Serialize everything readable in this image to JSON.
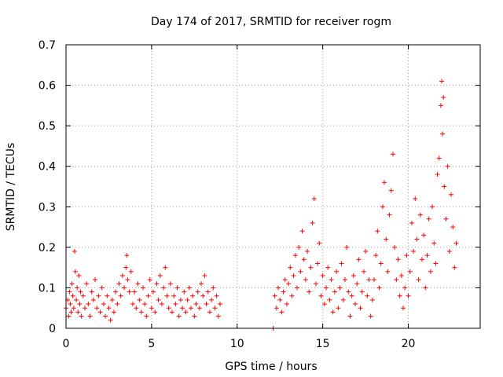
{
  "chart_data": {
    "type": "scatter",
    "title": "Day 174 of 2017, SRMTID for receiver rogm",
    "xlabel": "GPS time / hours",
    "ylabel": "SRMTID / TECUs",
    "xlim": [
      0,
      24.2
    ],
    "ylim": [
      0,
      0.7
    ],
    "x_ticks": [
      0,
      5,
      10,
      15,
      20
    ],
    "x_tick_labels": [
      "0",
      "5",
      "10",
      "15",
      "20"
    ],
    "y_ticks": [
      0,
      0.1,
      0.2,
      0.3,
      0.4,
      0.5,
      0.6,
      0.7
    ],
    "y_tick_labels": [
      "0",
      "0.1",
      "0.2",
      "0.3",
      "0.4",
      "0.5",
      "0.6",
      "0.7"
    ],
    "grid": true,
    "marker": "plus",
    "colors": {
      "points": "#ff0000",
      "grid": "#a0a0a0",
      "axes": "#000000"
    },
    "series": [
      {
        "points": [
          [
            0.0,
            0.05
          ],
          [
            0.1,
            0.07
          ],
          [
            0.15,
            0.03
          ],
          [
            0.2,
            0.09
          ],
          [
            0.25,
            0.06
          ],
          [
            0.3,
            0.04
          ],
          [
            0.35,
            0.11
          ],
          [
            0.4,
            0.08
          ],
          [
            0.45,
            0.05
          ],
          [
            0.5,
            0.19
          ],
          [
            0.55,
            0.14
          ],
          [
            0.6,
            0.07
          ],
          [
            0.65,
            0.1
          ],
          [
            0.7,
            0.04
          ],
          [
            0.75,
            0.13
          ],
          [
            0.8,
            0.06
          ],
          [
            0.85,
            0.09
          ],
          [
            0.9,
            0.03
          ],
          [
            1.0,
            0.08
          ],
          [
            1.1,
            0.05
          ],
          [
            1.2,
            0.11
          ],
          [
            1.3,
            0.06
          ],
          [
            1.4,
            0.03
          ],
          [
            1.5,
            0.09
          ],
          [
            1.6,
            0.07
          ],
          [
            1.7,
            0.12
          ],
          [
            1.8,
            0.05
          ],
          [
            1.9,
            0.08
          ],
          [
            2.0,
            0.04
          ],
          [
            2.1,
            0.1
          ],
          [
            2.2,
            0.06
          ],
          [
            2.3,
            0.03
          ],
          [
            2.4,
            0.08
          ],
          [
            2.5,
            0.05
          ],
          [
            2.6,
            0.02
          ],
          [
            2.7,
            0.07
          ],
          [
            2.8,
            0.04
          ],
          [
            2.9,
            0.09
          ],
          [
            3.0,
            0.06
          ],
          [
            3.1,
            0.11
          ],
          [
            3.2,
            0.08
          ],
          [
            3.3,
            0.13
          ],
          [
            3.4,
            0.1
          ],
          [
            3.5,
            0.15
          ],
          [
            3.55,
            0.18
          ],
          [
            3.6,
            0.12
          ],
          [
            3.7,
            0.09
          ],
          [
            3.8,
            0.14
          ],
          [
            3.9,
            0.06
          ],
          [
            4.0,
            0.09
          ],
          [
            4.1,
            0.05
          ],
          [
            4.2,
            0.11
          ],
          [
            4.3,
            0.07
          ],
          [
            4.4,
            0.04
          ],
          [
            4.5,
            0.1
          ],
          [
            4.6,
            0.06
          ],
          [
            4.7,
            0.03
          ],
          [
            4.8,
            0.08
          ],
          [
            4.9,
            0.12
          ],
          [
            5.0,
            0.05
          ],
          [
            5.1,
            0.09
          ],
          [
            5.2,
            0.04
          ],
          [
            5.3,
            0.11
          ],
          [
            5.4,
            0.07
          ],
          [
            5.5,
            0.13
          ],
          [
            5.6,
            0.06
          ],
          [
            5.7,
            0.1
          ],
          [
            5.8,
            0.15
          ],
          [
            5.9,
            0.08
          ],
          [
            6.0,
            0.05
          ],
          [
            6.1,
            0.11
          ],
          [
            6.2,
            0.04
          ],
          [
            6.3,
            0.08
          ],
          [
            6.4,
            0.06
          ],
          [
            6.5,
            0.1
          ],
          [
            6.6,
            0.03
          ],
          [
            6.7,
            0.07
          ],
          [
            6.8,
            0.05
          ],
          [
            6.9,
            0.09
          ],
          [
            7.0,
            0.04
          ],
          [
            7.1,
            0.07
          ],
          [
            7.2,
            0.1
          ],
          [
            7.3,
            0.05
          ],
          [
            7.4,
            0.08
          ],
          [
            7.5,
            0.03
          ],
          [
            7.6,
            0.06
          ],
          [
            7.7,
            0.09
          ],
          [
            7.8,
            0.05
          ],
          [
            7.9,
            0.11
          ],
          [
            8.0,
            0.08
          ],
          [
            8.1,
            0.13
          ],
          [
            8.2,
            0.06
          ],
          [
            8.3,
            0.09
          ],
          [
            8.4,
            0.04
          ],
          [
            8.5,
            0.07
          ],
          [
            8.6,
            0.1
          ],
          [
            8.7,
            0.05
          ],
          [
            8.8,
            0.08
          ],
          [
            8.9,
            0.03
          ],
          [
            9.0,
            0.06
          ],
          [
            12.1,
            0.0
          ],
          [
            12.2,
            0.08
          ],
          [
            12.3,
            0.05
          ],
          [
            12.4,
            0.1
          ],
          [
            12.5,
            0.07
          ],
          [
            12.6,
            0.04
          ],
          [
            12.7,
            0.09
          ],
          [
            12.8,
            0.12
          ],
          [
            12.9,
            0.06
          ],
          [
            13.0,
            0.11
          ],
          [
            13.1,
            0.15
          ],
          [
            13.2,
            0.08
          ],
          [
            13.3,
            0.13
          ],
          [
            13.4,
            0.18
          ],
          [
            13.5,
            0.1
          ],
          [
            13.6,
            0.2
          ],
          [
            13.7,
            0.14
          ],
          [
            13.8,
            0.24
          ],
          [
            13.9,
            0.17
          ],
          [
            14.0,
            0.12
          ],
          [
            14.1,
            0.19
          ],
          [
            14.2,
            0.09
          ],
          [
            14.3,
            0.15
          ],
          [
            14.4,
            0.26
          ],
          [
            14.5,
            0.32
          ],
          [
            14.6,
            0.11
          ],
          [
            14.7,
            0.16
          ],
          [
            14.8,
            0.21
          ],
          [
            14.9,
            0.08
          ],
          [
            15.0,
            0.13
          ],
          [
            15.1,
            0.06
          ],
          [
            15.2,
            0.1
          ],
          [
            15.3,
            0.15
          ],
          [
            15.4,
            0.07
          ],
          [
            15.5,
            0.12
          ],
          [
            15.6,
            0.04
          ],
          [
            15.7,
            0.09
          ],
          [
            15.8,
            0.14
          ],
          [
            15.9,
            0.05
          ],
          [
            16.0,
            0.1
          ],
          [
            16.1,
            0.16
          ],
          [
            16.2,
            0.07
          ],
          [
            16.3,
            0.12
          ],
          [
            16.4,
            0.2
          ],
          [
            16.5,
            0.09
          ],
          [
            16.6,
            0.03
          ],
          [
            16.7,
            0.08
          ],
          [
            16.8,
            0.13
          ],
          [
            16.9,
            0.06
          ],
          [
            17.0,
            0.11
          ],
          [
            17.1,
            0.17
          ],
          [
            17.2,
            0.05
          ],
          [
            17.3,
            0.09
          ],
          [
            17.4,
            0.14
          ],
          [
            17.5,
            0.19
          ],
          [
            17.6,
            0.08
          ],
          [
            17.7,
            0.12
          ],
          [
            17.8,
            0.03
          ],
          [
            17.9,
            0.07
          ],
          [
            18.0,
            0.12
          ],
          [
            18.1,
            0.18
          ],
          [
            18.2,
            0.24
          ],
          [
            18.3,
            0.1
          ],
          [
            18.4,
            0.16
          ],
          [
            18.5,
            0.3
          ],
          [
            18.6,
            0.36
          ],
          [
            18.7,
            0.22
          ],
          [
            18.8,
            0.14
          ],
          [
            18.9,
            0.28
          ],
          [
            19.0,
            0.34
          ],
          [
            19.1,
            0.43
          ],
          [
            19.2,
            0.2
          ],
          [
            19.3,
            0.12
          ],
          [
            19.4,
            0.17
          ],
          [
            19.5,
            0.08
          ],
          [
            19.6,
            0.13
          ],
          [
            19.7,
            0.05
          ],
          [
            19.8,
            0.1
          ],
          [
            19.9,
            0.18
          ],
          [
            20.0,
            0.08
          ],
          [
            20.1,
            0.14
          ],
          [
            20.2,
            0.26
          ],
          [
            20.3,
            0.19
          ],
          [
            20.4,
            0.32
          ],
          [
            20.5,
            0.22
          ],
          [
            20.6,
            0.12
          ],
          [
            20.7,
            0.28
          ],
          [
            20.8,
            0.17
          ],
          [
            20.9,
            0.23
          ],
          [
            21.0,
            0.1
          ],
          [
            21.1,
            0.18
          ],
          [
            21.2,
            0.27
          ],
          [
            21.3,
            0.14
          ],
          [
            21.4,
            0.3
          ],
          [
            21.5,
            0.21
          ],
          [
            21.6,
            0.16
          ],
          [
            21.7,
            0.38
          ],
          [
            21.8,
            0.42
          ],
          [
            21.9,
            0.55
          ],
          [
            21.95,
            0.61
          ],
          [
            22.0,
            0.48
          ],
          [
            22.05,
            0.57
          ],
          [
            22.1,
            0.35
          ],
          [
            22.2,
            0.27
          ],
          [
            22.3,
            0.4
          ],
          [
            22.4,
            0.19
          ],
          [
            22.5,
            0.33
          ],
          [
            22.6,
            0.25
          ],
          [
            22.7,
            0.15
          ],
          [
            22.8,
            0.21
          ]
        ]
      }
    ]
  }
}
